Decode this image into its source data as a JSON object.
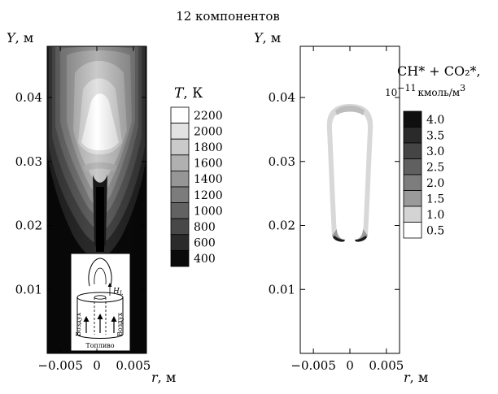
{
  "figure_title": "12 компонентов",
  "chart_data": [
    {
      "type": "heatmap",
      "panel": "left",
      "xlabel": "r, м",
      "ylabel": "Y, м",
      "xlim": [
        -0.0068,
        0.0068
      ],
      "ylim": [
        0.0,
        0.048
      ],
      "x_ticks": [
        -0.005,
        0,
        0.005
      ],
      "y_ticks": [
        0.01,
        0.02,
        0.03,
        0.04
      ],
      "x_tick_labels": [
        "−0.005",
        "0",
        "0.005"
      ],
      "y_tick_labels": [
        "0.01",
        "0.02",
        "0.03",
        "0.04"
      ],
      "colorbar": {
        "variable": "T",
        "unit": "К",
        "levels": [
          2200,
          2000,
          1800,
          1600,
          1400,
          1200,
          1000,
          800,
          600,
          400
        ],
        "level_labels": [
          "2200",
          "2000",
          "1800",
          "1600",
          "1400",
          "1200",
          "1000",
          "800",
          "600",
          "400"
        ]
      },
      "inset": {
        "label_h": "H",
        "label_h_sub": "L",
        "label_air_left": "Воздух",
        "label_air_right": "Воздух",
        "label_fuel": "Топливо"
      }
    },
    {
      "type": "heatmap",
      "panel": "right",
      "xlabel": "r, м",
      "ylabel": "Y, м",
      "xlim": [
        -0.0068,
        0.0068
      ],
      "ylim": [
        0.0,
        0.048
      ],
      "x_ticks": [
        -0.005,
        0,
        0.005
      ],
      "y_ticks": [
        0.01,
        0.02,
        0.03,
        0.04
      ],
      "x_tick_labels": [
        "−0.005",
        "0",
        "0.005"
      ],
      "y_tick_labels": [
        "0.01",
        "0.02",
        "0.03",
        "0.04"
      ],
      "colorbar": {
        "variable": "CH* + CO₂*,",
        "unit_prefix": "10",
        "unit_prefix_exp": "−11",
        "unit": "кмоль/м",
        "unit_exp": "3",
        "levels": [
          4.0,
          3.5,
          3.0,
          2.5,
          2.0,
          1.5,
          1.0,
          0.5
        ],
        "level_labels": [
          "4.0",
          "3.5",
          "3.0",
          "2.5",
          "2.0",
          "1.5",
          "1.0",
          "0.5"
        ]
      }
    }
  ]
}
